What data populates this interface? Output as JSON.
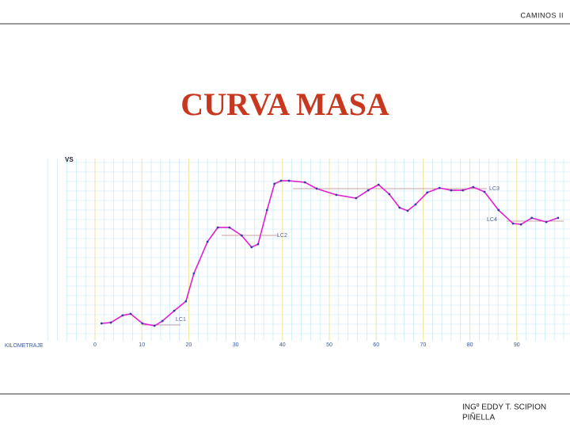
{
  "header": {
    "text": "CAMINOS II"
  },
  "title": "CURVA MASA",
  "chart_data": {
    "type": "line",
    "ylabel": "VS",
    "xlabel": "KILOMETRAJE",
    "xlim": [
      0,
      100
    ],
    "xticks": [
      0,
      10,
      20,
      30,
      40,
      50,
      60,
      70,
      80,
      90
    ],
    "ylim": [
      0,
      100
    ],
    "grid": true,
    "annotations": [
      "LC1",
      "LC2",
      "LC3",
      "LC4"
    ],
    "series": [
      {
        "color": "#e020d0",
        "x": [
          1.4,
          3.4,
          5.9,
          7.6,
          10.1,
          12.7,
          14.4,
          16.9,
          19.4,
          21.1,
          24.0,
          26.2,
          28.7,
          31.3,
          33.4,
          34.8,
          36.7,
          38.3,
          39.7,
          41.4,
          44.8,
          47.3,
          51.5,
          55.7,
          58.3,
          60.5,
          62.8,
          65.0,
          66.7,
          68.4,
          70.9,
          73.5,
          76.0,
          78.5,
          80.7,
          83.1,
          86.1,
          89.2,
          90.9,
          93.2,
          96.3,
          98.8
        ],
        "values": [
          7.9,
          8.4,
          12.6,
          13.5,
          7.9,
          6.5,
          9.3,
          15.3,
          20.9,
          37.2,
          55.8,
          64.2,
          64.2,
          59.5,
          52.6,
          54.4,
          74.4,
          89.8,
          91.6,
          91.6,
          90.7,
          87.0,
          83.3,
          81.4,
          86.0,
          89.3,
          83.7,
          75.8,
          74.0,
          77.7,
          84.7,
          87.4,
          86.0,
          86.0,
          87.9,
          85.1,
          74.4,
          66.5,
          66.0,
          69.8,
          67.4,
          69.8
        ]
      }
    ]
  },
  "footer": {
    "line1": "INGº EDDY T. SCIPION",
    "line2": "PIÑELLA"
  }
}
